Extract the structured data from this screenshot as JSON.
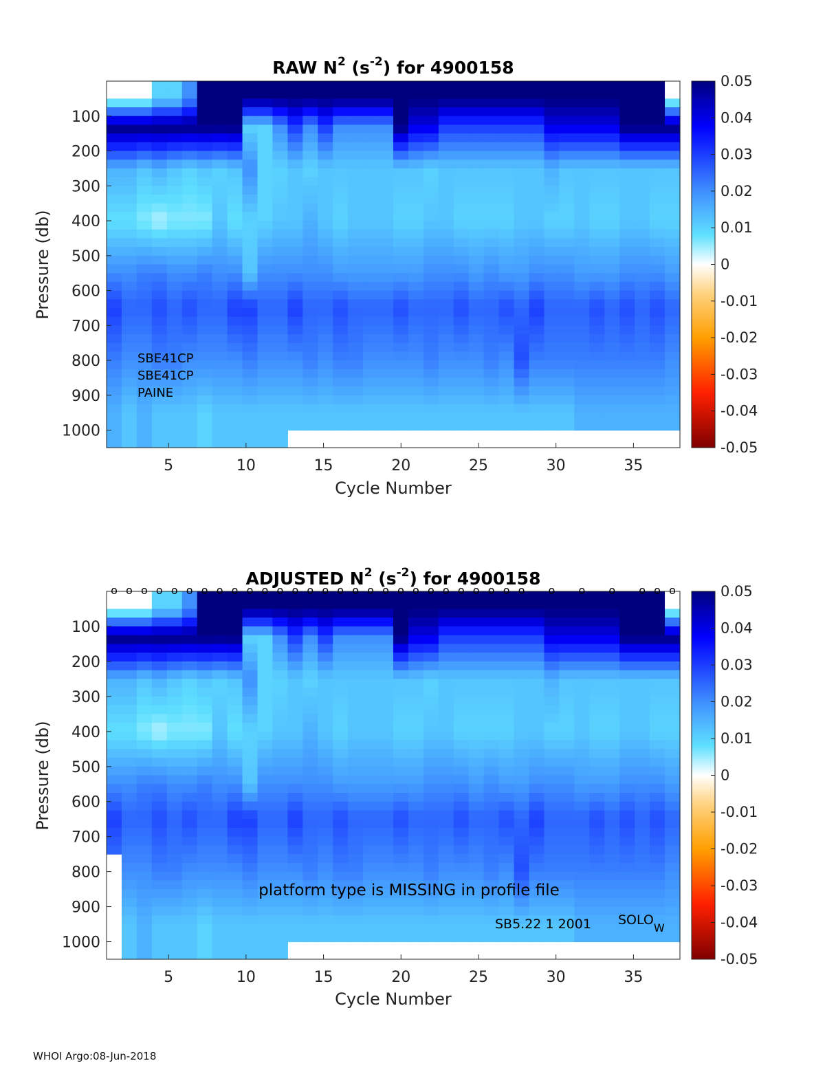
{
  "chart_data": [
    {
      "type": "heatmap",
      "title_parts": [
        "RAW N",
        "2",
        " (s",
        "-2",
        ") for 4900158"
      ],
      "xlabel": "Cycle Number",
      "ylabel": "Pressure (db)",
      "x_range": [
        1,
        38
      ],
      "y_range": [
        0,
        1050
      ],
      "y_reversed": true,
      "x_ticks": [
        "5",
        "10",
        "15",
        "20",
        "25",
        "30",
        "35"
      ],
      "y_ticks": [
        "100",
        "200",
        "300",
        "400",
        "500",
        "600",
        "700",
        "800",
        "900",
        "1000"
      ],
      "colorbar_ticks": [
        "0.05",
        "0.04",
        "0.03",
        "0.02",
        "0.01",
        "0",
        "-0.01",
        "-0.02",
        "-0.03",
        "-0.04",
        "-0.05"
      ],
      "color_range": [
        -0.05,
        0.05
      ],
      "colormap": "blue-cyan-white-yellow-red",
      "cycles": 38,
      "deep_cutoff_from_cycle": 13,
      "deep_cutoff_pressure": 1000,
      "values_by_depth": [
        {
          "pressure": 50,
          "values": [
            0,
            0,
            0,
            0.01,
            0.01,
            0.02,
            0.05,
            0.05,
            0.05,
            0.05,
            0.05,
            0.05,
            0.05,
            0.05,
            0.05,
            0.05,
            0.05,
            0.05,
            0.05,
            0.05,
            0.05,
            0.05,
            0.05,
            0.05,
            0.05,
            0.05,
            0.05,
            0.05,
            0.05,
            0.05,
            0.05,
            0.05,
            0.05,
            0.05,
            0.05,
            0.05,
            0.05,
            0
          ]
        },
        {
          "pressure": 130,
          "values": [
            0.05,
            0.05,
            0.05,
            0.05,
            0.05,
            0.05,
            0.05,
            0.05,
            0.05,
            0.01,
            0.01,
            0.02,
            0.03,
            0.02,
            0.03,
            0.02,
            0.02,
            0.02,
            0.02,
            0.05,
            0.04,
            0.04,
            0.03,
            0.03,
            0.03,
            0.03,
            0.03,
            0.03,
            0.03,
            0.04,
            0.04,
            0.04,
            0.04,
            0.04,
            0.05,
            0.05,
            0.05,
            0.05
          ]
        },
        {
          "pressure": 250,
          "values": [
            0.015,
            0.015,
            0.012,
            0.015,
            0.012,
            0.01,
            0.012,
            0.01,
            0.012,
            0.02,
            0.01,
            0.01,
            0.012,
            0.01,
            0.012,
            0.012,
            0.012,
            0.012,
            0.012,
            0.012,
            0.012,
            0.01,
            0.012,
            0.012,
            0.012,
            0.012,
            0.012,
            0.012,
            0.012,
            0.015,
            0.012,
            0.012,
            0.012,
            0.012,
            0.012,
            0.012,
            0.012,
            0.012
          ]
        },
        {
          "pressure": 400,
          "values": [
            0.008,
            0.008,
            0.006,
            0.004,
            0.006,
            0.006,
            0.006,
            0.012,
            0.008,
            0.01,
            0.01,
            0.012,
            0.012,
            0.015,
            0.012,
            0.01,
            0.012,
            0.012,
            0.012,
            0.01,
            0.01,
            0.012,
            0.012,
            0.01,
            0.01,
            0.01,
            0.01,
            0.012,
            0.012,
            0.01,
            0.01,
            0.012,
            0.01,
            0.01,
            0.012,
            0.012,
            0.01,
            0.01
          ]
        },
        {
          "pressure": 550,
          "values": [
            0.02,
            0.02,
            0.022,
            0.022,
            0.02,
            0.02,
            0.022,
            0.02,
            0.02,
            0.012,
            0.02,
            0.02,
            0.02,
            0.02,
            0.02,
            0.018,
            0.018,
            0.018,
            0.018,
            0.018,
            0.018,
            0.02,
            0.02,
            0.02,
            0.018,
            0.02,
            0.018,
            0.018,
            0.02,
            0.02,
            0.02,
            0.018,
            0.018,
            0.018,
            0.02,
            0.02,
            0.02,
            0.018
          ]
        },
        {
          "pressure": 650,
          "values": [
            0.03,
            0.025,
            0.025,
            0.028,
            0.025,
            0.028,
            0.025,
            0.025,
            0.03,
            0.03,
            0.025,
            0.025,
            0.03,
            0.025,
            0.025,
            0.028,
            0.025,
            0.025,
            0.025,
            0.028,
            0.025,
            0.025,
            0.025,
            0.028,
            0.025,
            0.025,
            0.028,
            0.025,
            0.03,
            0.025,
            0.025,
            0.025,
            0.028,
            0.025,
            0.028,
            0.025,
            0.028,
            0.025
          ]
        },
        {
          "pressure": 800,
          "values": [
            0.022,
            0.02,
            0.02,
            0.022,
            0.022,
            0.02,
            0.02,
            0.02,
            0.02,
            0.022,
            0.02,
            0.02,
            0.02,
            0.022,
            0.02,
            0.022,
            0.022,
            0.02,
            0.02,
            0.02,
            0.02,
            0.022,
            0.02,
            0.02,
            0.02,
            0.022,
            0.02,
            0.028,
            0.022,
            0.022,
            0.022,
            0.022,
            0.022,
            0.022,
            0.022,
            0.022,
            0.022,
            0.02
          ]
        },
        {
          "pressure": 950,
          "values": [
            0.015,
            0.012,
            0.015,
            0.012,
            0.012,
            0.012,
            0.01,
            0.012,
            0.012,
            0.012,
            0.012,
            0.012,
            0.012,
            0.012,
            0.012,
            0.012,
            0.012,
            0.012,
            0.012,
            0.012,
            0.012,
            0.012,
            0.012,
            0.012,
            0.012,
            0.012,
            0.012,
            0.012,
            0.012,
            0.012,
            0.012,
            0.015,
            0.015,
            0.015,
            0.015,
            0.015,
            0.015,
            0.015
          ]
        }
      ],
      "annotations": [
        "SBE41CP",
        "SBE41CP",
        "PAINE"
      ],
      "legend_placement": "none"
    },
    {
      "type": "heatmap",
      "title_parts": [
        "ADJUSTED N",
        "2",
        " (s",
        "-2",
        ") for 4900158"
      ],
      "xlabel": "Cycle Number",
      "ylabel": "Pressure (db)",
      "x_range": [
        1,
        38
      ],
      "y_range": [
        0,
        1050
      ],
      "y_reversed": true,
      "x_ticks": [
        "5",
        "10",
        "15",
        "20",
        "25",
        "30",
        "35"
      ],
      "y_ticks": [
        "100",
        "200",
        "300",
        "400",
        "500",
        "600",
        "700",
        "800",
        "900",
        "1000"
      ],
      "colorbar_ticks": [
        "0.05",
        "0.04",
        "0.03",
        "0.02",
        "0.01",
        "0",
        "-0.01",
        "-0.02",
        "-0.03",
        "-0.04",
        "-0.05"
      ],
      "color_range": [
        -0.05,
        0.05
      ],
      "colormap": "blue-cyan-white-yellow-red",
      "cycles": 38,
      "deep_cutoff_from_cycle": 13,
      "deep_cutoff_pressure": 1000,
      "shallow_cutoff_cycle": 1,
      "shallow_cutoff_pressure": 750,
      "qc_marker": "o",
      "qc_marker_cycles": [
        1,
        2,
        3,
        4,
        5,
        6,
        7,
        8,
        9,
        10,
        11,
        12,
        13,
        14,
        15,
        16,
        17,
        18,
        19,
        20,
        21,
        22,
        23,
        24,
        25,
        26,
        27,
        28,
        30,
        32,
        34,
        36,
        37,
        38
      ],
      "annotations": [
        "platform type is MISSING in profile file",
        "SB5.22  1 2001",
        "SOLO",
        "W"
      ],
      "legend_placement": "none"
    }
  ],
  "footer": "WHOI Argo:08-Jun-2018"
}
